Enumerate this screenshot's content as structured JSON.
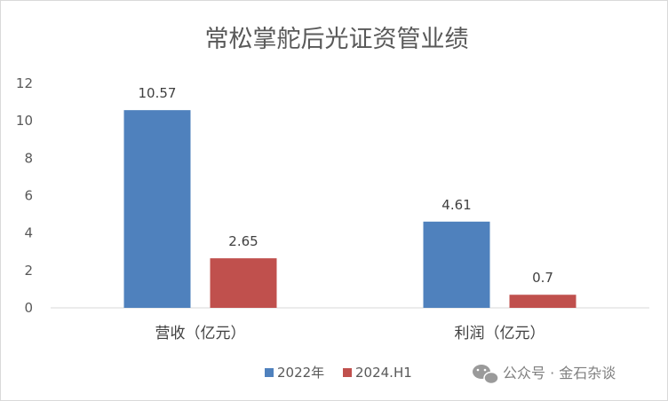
{
  "chart_data": {
    "type": "bar",
    "title": "常松掌舵后光证资管业绩",
    "categories": [
      "营收（亿元）",
      "利润（亿元）"
    ],
    "series": [
      {
        "name": "2022年",
        "values": [
          10.57,
          4.61
        ],
        "color": "#4f81bd"
      },
      {
        "name": "2024.H1",
        "values": [
          2.65,
          0.7
        ],
        "color": "#c0504d"
      }
    ],
    "data_labels": [
      [
        "10.57",
        "4.61"
      ],
      [
        "2.65",
        "0.7"
      ]
    ],
    "ylim": [
      0,
      12
    ],
    "yticks": [
      0,
      2,
      4,
      6,
      8,
      10,
      12
    ],
    "ytick_labels": [
      "0",
      "2",
      "4",
      "6",
      "8",
      "10",
      "12"
    ],
    "grid": false,
    "legend_position": "bottom"
  },
  "watermark": {
    "text": "公众号 · 金石杂谈",
    "icon": "wechat-icon"
  }
}
